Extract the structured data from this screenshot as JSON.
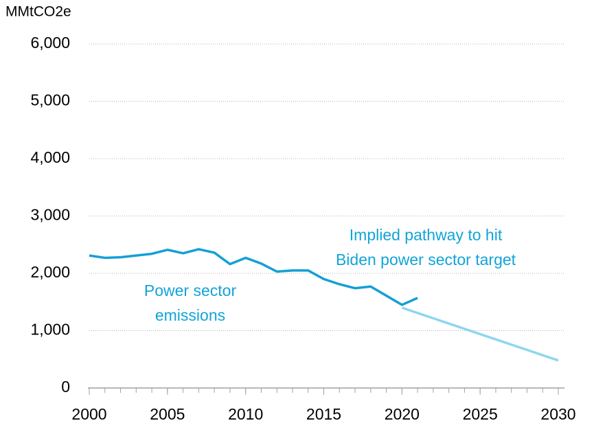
{
  "chart_data": {
    "type": "line",
    "y_label": "MMtCO2e",
    "series": [
      {
        "name": "Power sector emissions",
        "color": "#14a0d6",
        "x": [
          2000,
          2001,
          2002,
          2003,
          2004,
          2005,
          2006,
          2007,
          2008,
          2009,
          2010,
          2011,
          2012,
          2013,
          2014,
          2015,
          2016,
          2017,
          2018,
          2019,
          2020,
          2021
        ],
        "values": [
          2310,
          2270,
          2280,
          2310,
          2340,
          2410,
          2350,
          2420,
          2360,
          2160,
          2270,
          2170,
          2030,
          2050,
          2050,
          1900,
          1810,
          1740,
          1770,
          1610,
          1450,
          1570
        ]
      },
      {
        "name": "Implied pathway to hit Biden power sector target",
        "color": "#8fd5f0",
        "x": [
          2020,
          2030
        ],
        "values": [
          1400,
          480
        ]
      }
    ],
    "annotations": [
      {
        "lines": [
          "Power sector",
          "emissions"
        ]
      },
      {
        "lines": [
          "Implied pathway to hit",
          "Biden power sector target"
        ]
      }
    ],
    "xlim": [
      2000,
      2030
    ],
    "xticks": [
      2000,
      2005,
      2010,
      2015,
      2020,
      2025,
      2030
    ],
    "ylim": [
      0,
      6000
    ],
    "yticks": [
      0,
      {
        "value": 1000,
        "label": "1,000"
      },
      {
        "value": 2000,
        "label": "2,000"
      },
      {
        "value": 3000,
        "label": "3,000"
      },
      {
        "value": 4000,
        "label": "4,000"
      },
      {
        "value": 5000,
        "label": "5,000"
      },
      {
        "value": 6000,
        "label": "6,000"
      }
    ],
    "grid": true
  }
}
